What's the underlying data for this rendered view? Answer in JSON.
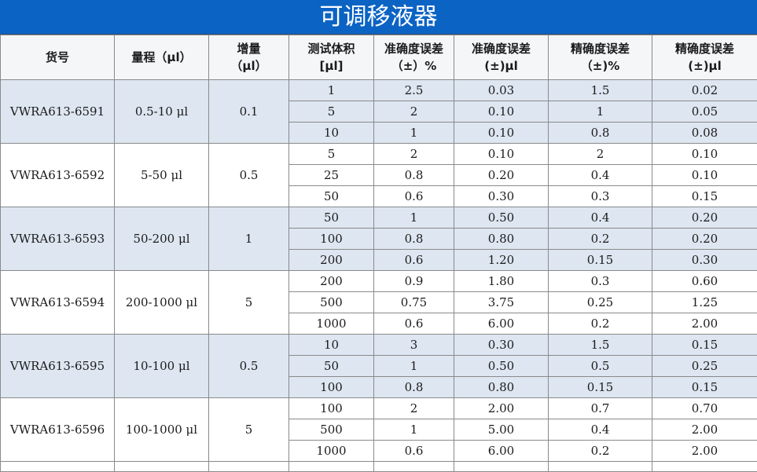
{
  "title": "可调移液器",
  "headers": [
    {
      "l1": "货号",
      "l2": ""
    },
    {
      "l1": "量程（μl）",
      "l2": ""
    },
    {
      "l1": "增量",
      "l2": "（μl）"
    },
    {
      "l1": "测试体积",
      "l2": "[μl]"
    },
    {
      "l1": "准确度误差",
      "l2": "（±）%"
    },
    {
      "l1": "准确度误差",
      "l2": "(±)μl"
    },
    {
      "l1": "精确度误差",
      "l2": "（±)%"
    },
    {
      "l1": "精确度误差",
      "l2": "(±)μl"
    }
  ],
  "groups": [
    {
      "item": "VWRA613-6591",
      "range": "0.5-10 μl",
      "inc": "0.1",
      "rows": [
        [
          "1",
          "2.5",
          "0.03",
          "1.5",
          "0.02"
        ],
        [
          "5",
          "2",
          "0.10",
          "1",
          "0.05"
        ],
        [
          "10",
          "1",
          "0.10",
          "0.8",
          "0.08"
        ]
      ]
    },
    {
      "item": "VWRA613-6592",
      "range": "5-50 μl",
      "inc": "0.5",
      "rows": [
        [
          "5",
          "2",
          "0.10",
          "2",
          "0.10"
        ],
        [
          "25",
          "0.8",
          "0.20",
          "0.4",
          "0.10"
        ],
        [
          "50",
          "0.6",
          "0.30",
          "0.3",
          "0.15"
        ]
      ]
    },
    {
      "item": "VWRA613-6593",
      "range": "50-200 μl",
      "inc": "1",
      "rows": [
        [
          "50",
          "1",
          "0.50",
          "0.4",
          "0.20"
        ],
        [
          "100",
          "0.8",
          "0.80",
          "0.2",
          "0.20"
        ],
        [
          "200",
          "0.6",
          "1.20",
          "0.15",
          "0.30"
        ]
      ]
    },
    {
      "item": "VWRA613-6594",
      "range": "200-1000 μl",
      "inc": "5",
      "rows": [
        [
          "200",
          "0.9",
          "1.80",
          "0.3",
          "0.60"
        ],
        [
          "500",
          "0.75",
          "3.75",
          "0.25",
          "1.25"
        ],
        [
          "1000",
          "0.6",
          "6.00",
          "0.2",
          "2.00"
        ]
      ]
    },
    {
      "item": "VWRA613-6595",
      "range": "10-100 μl",
      "inc": "0.5",
      "rows": [
        [
          "10",
          "3",
          "0.30",
          "1.5",
          "0.15"
        ],
        [
          "50",
          "1",
          "0.50",
          "0.5",
          "0.25"
        ],
        [
          "100",
          "0.8",
          "0.80",
          "0.15",
          "0.15"
        ]
      ]
    },
    {
      "item": "VWRA613-6596",
      "range": "100-1000 μl",
      "inc": "5",
      "rows": [
        [
          "100",
          "2",
          "2.00",
          "0.7",
          "0.70"
        ],
        [
          "500",
          "1",
          "5.00",
          "0.4",
          "2.00"
        ],
        [
          "1000",
          "0.6",
          "6.00",
          "0.2",
          "2.00"
        ]
      ]
    }
  ]
}
